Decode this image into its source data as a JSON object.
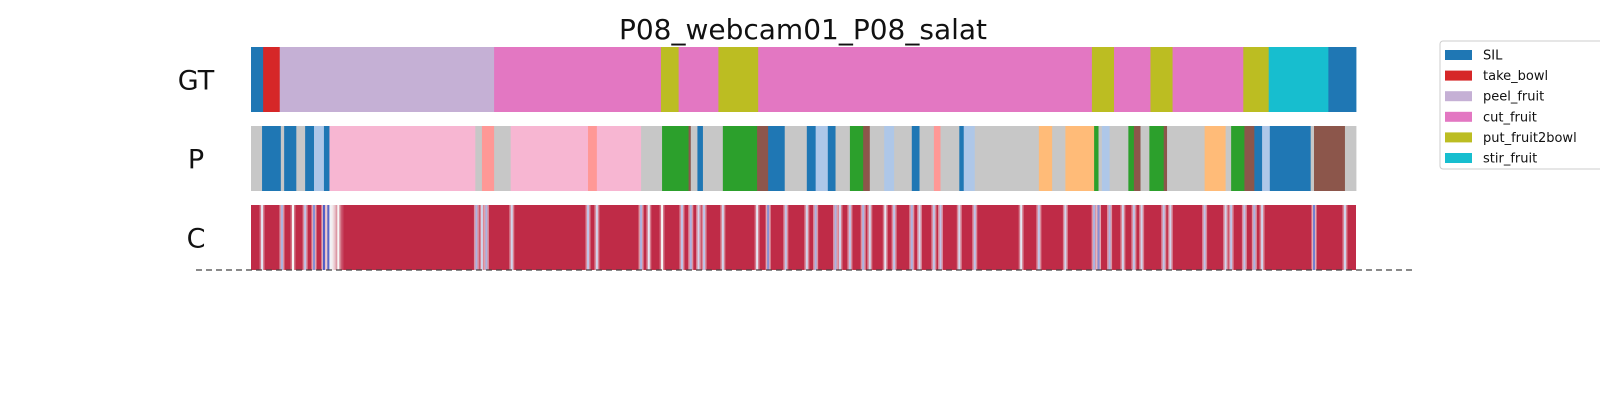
{
  "chart_data": {
    "type": "segmentation_timeline",
    "title": "P08_webcam01_P08_salat",
    "rows": [
      {
        "label": "GT",
        "kind": "segments",
        "segments": [
          {
            "class": "SIL",
            "start": 0,
            "end": 0.011
          },
          {
            "class": "take_bowl",
            "start": 0.011,
            "end": 0.026
          },
          {
            "class": "peel_fruit",
            "start": 0.026,
            "end": 0.22
          },
          {
            "class": "cut_fruit",
            "start": 0.22,
            "end": 0.371
          },
          {
            "class": "put_fruit2bowl",
            "start": 0.371,
            "end": 0.387
          },
          {
            "class": "cut_fruit",
            "start": 0.387,
            "end": 0.423
          },
          {
            "class": "put_fruit2bowl",
            "start": 0.423,
            "end": 0.459
          },
          {
            "class": "cut_fruit",
            "start": 0.459,
            "end": 0.761
          },
          {
            "class": "put_fruit2bowl",
            "start": 0.761,
            "end": 0.781
          },
          {
            "class": "cut_fruit",
            "start": 0.781,
            "end": 0.814
          },
          {
            "class": "put_fruit2bowl",
            "start": 0.814,
            "end": 0.834
          },
          {
            "class": "cut_fruit",
            "start": 0.834,
            "end": 0.898
          },
          {
            "class": "put_fruit2bowl",
            "start": 0.898,
            "end": 0.921
          },
          {
            "class": "stir_fruit",
            "start": 0.921,
            "end": 0.975
          },
          {
            "class": "SIL",
            "start": 0.975,
            "end": 1.0
          }
        ]
      },
      {
        "label": "P",
        "kind": "segments",
        "segments": [
          {
            "class": "other",
            "start": 0,
            "end": 0.01
          },
          {
            "class": "SIL",
            "start": 0.01,
            "end": 0.027
          },
          {
            "class": "other",
            "start": 0.027,
            "end": 0.03
          },
          {
            "class": "SIL",
            "start": 0.03,
            "end": 0.041
          },
          {
            "class": "other",
            "start": 0.041,
            "end": 0.049
          },
          {
            "class": "SIL",
            "start": 0.049,
            "end": 0.057
          },
          {
            "class": "light_blue",
            "start": 0.057,
            "end": 0.066
          },
          {
            "class": "SIL",
            "start": 0.066,
            "end": 0.071
          },
          {
            "class": "light_pink",
            "start": 0.071,
            "end": 0.203
          },
          {
            "class": "other",
            "start": 0.203,
            "end": 0.209
          },
          {
            "class": "salmon",
            "start": 0.209,
            "end": 0.22
          },
          {
            "class": "other",
            "start": 0.22,
            "end": 0.235
          },
          {
            "class": "light_pink",
            "start": 0.235,
            "end": 0.305
          },
          {
            "class": "salmon",
            "start": 0.305,
            "end": 0.313
          },
          {
            "class": "light_pink",
            "start": 0.313,
            "end": 0.353
          },
          {
            "class": "other",
            "start": 0.353,
            "end": 0.372
          },
          {
            "class": "green",
            "start": 0.372,
            "end": 0.396
          },
          {
            "class": "brown",
            "start": 0.396,
            "end": 0.398
          },
          {
            "class": "other",
            "start": 0.398,
            "end": 0.404
          },
          {
            "class": "SIL",
            "start": 0.404,
            "end": 0.409
          },
          {
            "class": "other",
            "start": 0.409,
            "end": 0.427
          },
          {
            "class": "green",
            "start": 0.427,
            "end": 0.458
          },
          {
            "class": "brown",
            "start": 0.458,
            "end": 0.468
          },
          {
            "class": "SIL",
            "start": 0.468,
            "end": 0.483
          },
          {
            "class": "other",
            "start": 0.483,
            "end": 0.503
          },
          {
            "class": "SIL",
            "start": 0.503,
            "end": 0.511
          },
          {
            "class": "light_blue",
            "start": 0.511,
            "end": 0.522
          },
          {
            "class": "SIL",
            "start": 0.522,
            "end": 0.529
          },
          {
            "class": "other",
            "start": 0.529,
            "end": 0.542
          },
          {
            "class": "green",
            "start": 0.542,
            "end": 0.554
          },
          {
            "class": "brown",
            "start": 0.554,
            "end": 0.56
          },
          {
            "class": "other",
            "start": 0.56,
            "end": 0.573
          },
          {
            "class": "light_blue",
            "start": 0.573,
            "end": 0.582
          },
          {
            "class": "other",
            "start": 0.582,
            "end": 0.598
          },
          {
            "class": "SIL",
            "start": 0.598,
            "end": 0.605
          },
          {
            "class": "other",
            "start": 0.605,
            "end": 0.618
          },
          {
            "class": "salmon",
            "start": 0.618,
            "end": 0.624
          },
          {
            "class": "other",
            "start": 0.624,
            "end": 0.641
          },
          {
            "class": "SIL",
            "start": 0.641,
            "end": 0.645
          },
          {
            "class": "light_blue",
            "start": 0.645,
            "end": 0.655
          },
          {
            "class": "other",
            "start": 0.655,
            "end": 0.713
          },
          {
            "class": "light_orange",
            "start": 0.713,
            "end": 0.725
          },
          {
            "class": "other",
            "start": 0.725,
            "end": 0.737
          },
          {
            "class": "light_orange",
            "start": 0.737,
            "end": 0.763
          },
          {
            "class": "green",
            "start": 0.763,
            "end": 0.767
          },
          {
            "class": "other",
            "start": 0.767,
            "end": 0.77
          },
          {
            "class": "light_blue",
            "start": 0.77,
            "end": 0.777
          },
          {
            "class": "other",
            "start": 0.777,
            "end": 0.794
          },
          {
            "class": "green",
            "start": 0.794,
            "end": 0.799
          },
          {
            "class": "brown",
            "start": 0.799,
            "end": 0.805
          },
          {
            "class": "other",
            "start": 0.805,
            "end": 0.813
          },
          {
            "class": "green",
            "start": 0.813,
            "end": 0.826
          },
          {
            "class": "brown",
            "start": 0.826,
            "end": 0.829
          },
          {
            "class": "other",
            "start": 0.829,
            "end": 0.863
          },
          {
            "class": "light_orange",
            "start": 0.863,
            "end": 0.882
          },
          {
            "class": "other",
            "start": 0.882,
            "end": 0.887
          },
          {
            "class": "green",
            "start": 0.887,
            "end": 0.899
          },
          {
            "class": "brown",
            "start": 0.899,
            "end": 0.908
          },
          {
            "class": "SIL",
            "start": 0.908,
            "end": 0.915
          },
          {
            "class": "light_blue",
            "start": 0.915,
            "end": 0.922
          },
          {
            "class": "SIL",
            "start": 0.922,
            "end": 0.959
          },
          {
            "class": "other",
            "start": 0.959,
            "end": 0.962
          },
          {
            "class": "brown",
            "start": 0.962,
            "end": 0.99
          },
          {
            "class": "other",
            "start": 0.99,
            "end": 1.0
          }
        ]
      },
      {
        "label": "C",
        "kind": "confidence",
        "base_level": 0.92,
        "dips": [
          {
            "at": 0.01,
            "level": 0.45
          },
          {
            "at": 0.028,
            "level": 0.3
          },
          {
            "at": 0.038,
            "level": 0.5
          },
          {
            "at": 0.049,
            "level": 0.35
          },
          {
            "at": 0.057,
            "level": 0.2
          },
          {
            "at": 0.066,
            "level": 0.05
          },
          {
            "at": 0.07,
            "level": 0.08
          },
          {
            "at": 0.079,
            "level": 0.5
          },
          {
            "at": 0.204,
            "level": 0.3
          },
          {
            "at": 0.209,
            "level": 0.4
          },
          {
            "at": 0.213,
            "level": 0.3
          },
          {
            "at": 0.236,
            "level": 0.4
          },
          {
            "at": 0.305,
            "level": 0.35
          },
          {
            "at": 0.313,
            "level": 0.4
          },
          {
            "at": 0.353,
            "level": 0.3
          },
          {
            "at": 0.36,
            "level": 0.45
          },
          {
            "at": 0.372,
            "level": 0.5
          },
          {
            "at": 0.39,
            "level": 0.35
          },
          {
            "at": 0.398,
            "level": 0.3
          },
          {
            "at": 0.405,
            "level": 0.4
          },
          {
            "at": 0.41,
            "level": 0.35
          },
          {
            "at": 0.427,
            "level": 0.4
          },
          {
            "at": 0.458,
            "level": 0.45
          },
          {
            "at": 0.468,
            "level": 0.2
          },
          {
            "at": 0.484,
            "level": 0.35
          },
          {
            "at": 0.503,
            "level": 0.4
          },
          {
            "at": 0.511,
            "level": 0.3
          },
          {
            "at": 0.529,
            "level": 0.3
          },
          {
            "at": 0.533,
            "level": 0.4
          },
          {
            "at": 0.542,
            "level": 0.35
          },
          {
            "at": 0.554,
            "level": 0.3
          },
          {
            "at": 0.56,
            "level": 0.4
          },
          {
            "at": 0.574,
            "level": 0.45
          },
          {
            "at": 0.582,
            "level": 0.35
          },
          {
            "at": 0.598,
            "level": 0.3
          },
          {
            "at": 0.605,
            "level": 0.4
          },
          {
            "at": 0.618,
            "level": 0.35
          },
          {
            "at": 0.624,
            "level": 0.35
          },
          {
            "at": 0.641,
            "level": 0.4
          },
          {
            "at": 0.655,
            "level": 0.35
          },
          {
            "at": 0.697,
            "level": 0.45
          },
          {
            "at": 0.713,
            "level": 0.35
          },
          {
            "at": 0.737,
            "level": 0.4
          },
          {
            "at": 0.763,
            "level": 0.3
          },
          {
            "at": 0.767,
            "level": 0.2
          },
          {
            "at": 0.777,
            "level": 0.3
          },
          {
            "at": 0.789,
            "level": 0.4
          },
          {
            "at": 0.799,
            "level": 0.35
          },
          {
            "at": 0.806,
            "level": 0.4
          },
          {
            "at": 0.826,
            "level": 0.35
          },
          {
            "at": 0.832,
            "level": 0.4
          },
          {
            "at": 0.863,
            "level": 0.35
          },
          {
            "at": 0.882,
            "level": 0.4
          },
          {
            "at": 0.887,
            "level": 0.35
          },
          {
            "at": 0.899,
            "level": 0.35
          },
          {
            "at": 0.908,
            "level": 0.3
          },
          {
            "at": 0.915,
            "level": 0.4
          },
          {
            "at": 0.962,
            "level": 0.15
          },
          {
            "at": 0.99,
            "level": 0.4
          }
        ],
        "fade": {
          "start": 0.071,
          "end": 0.085,
          "from_level": 0.45,
          "to_level": 0.92
        }
      }
    ],
    "legend": {
      "placement": "top-right",
      "entries": [
        {
          "class": "SIL",
          "label": "SIL"
        },
        {
          "class": "take_bowl",
          "label": "take_bowl"
        },
        {
          "class": "peel_fruit",
          "label": "peel_fruit"
        },
        {
          "class": "cut_fruit",
          "label": "cut_fruit"
        },
        {
          "class": "put_fruit2bowl",
          "label": "put_fruit2bowl"
        },
        {
          "class": "stir_fruit",
          "label": "stir_fruit"
        }
      ]
    },
    "colors": {
      "SIL": "#1f77b4",
      "take_bowl": "#d62728",
      "peel_fruit": "#c5b0d5",
      "cut_fruit": "#e377c2",
      "put_fruit2bowl": "#bcbd22",
      "stir_fruit": "#17becf",
      "other": "#c7c7c7",
      "light_blue": "#aec7e8",
      "light_pink": "#f7b6d2",
      "salmon": "#ff9896",
      "green": "#2ca02c",
      "brown": "#8c564b",
      "light_orange": "#ffbb78"
    },
    "confidence_colormap": {
      "low": "#3b4cc0",
      "mid": "#f7f7f7",
      "high": "#b40426"
    }
  }
}
